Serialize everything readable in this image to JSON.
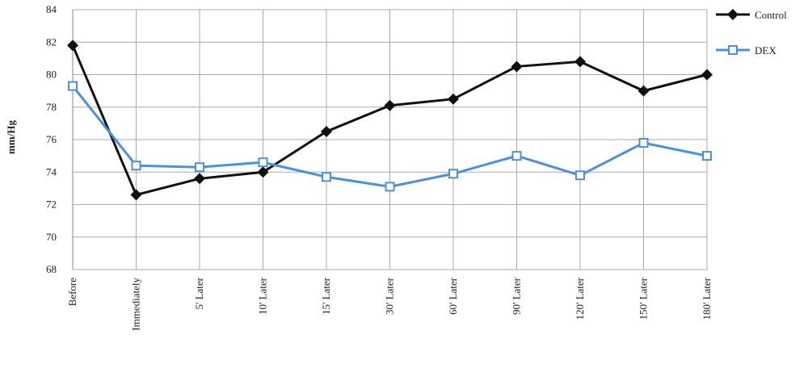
{
  "chart_data": {
    "type": "line",
    "y_label": "mm/Hg",
    "categories": [
      "Before",
      "Immediately",
      "5' Later",
      "10' Later",
      "15' Later",
      "30' Later",
      "60' Later",
      "90' Later",
      "120' Later",
      "150' Later",
      "180' Later"
    ],
    "series": [
      {
        "name": "Control",
        "color": "#111111",
        "marker": "diamond",
        "values": [
          81.8,
          72.6,
          73.6,
          74.0,
          76.5,
          78.1,
          78.5,
          80.5,
          80.8,
          79.0,
          80.0
        ]
      },
      {
        "name": "DEX",
        "color": "#4a90e2",
        "marker": "square",
        "values": [
          79.3,
          74.4,
          74.3,
          74.6,
          73.7,
          73.1,
          73.9,
          75.0,
          73.8,
          75.8,
          75.0
        ]
      }
    ],
    "ylim": [
      68,
      84
    ],
    "yticks": [
      68,
      70,
      72,
      74,
      76,
      78,
      80,
      82,
      84
    ],
    "grid": true,
    "legend": "top-right"
  }
}
